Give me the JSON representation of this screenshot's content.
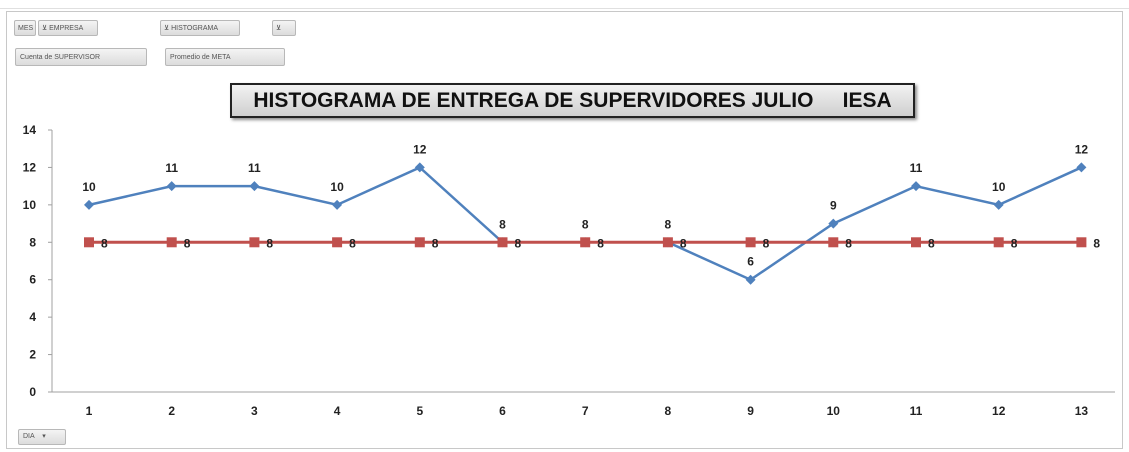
{
  "filters": {
    "mes": "MES",
    "empresa": "EMPRESA",
    "histograma": "HISTOGRAMA"
  },
  "values": {
    "field1": "Cuenta de SUPERVISOR",
    "field2": "Promedio de META"
  },
  "axis_field": "DIA",
  "chart_data": {
    "type": "line",
    "title": "HISTOGRAMA DE ENTREGA DE SUPERVIDORES JULIO     IESA",
    "categories": [
      1,
      2,
      3,
      4,
      5,
      6,
      7,
      8,
      9,
      10,
      11,
      12,
      13
    ],
    "ylim": [
      0,
      14
    ],
    "yticks": [
      0,
      2,
      4,
      6,
      8,
      10,
      12,
      14
    ],
    "grid": false,
    "legend": "none",
    "series": [
      {
        "values": [
          10,
          11,
          11,
          10,
          12,
          8,
          8,
          8,
          6,
          9,
          11,
          10,
          12
        ],
        "color": "#4f81bd",
        "marker": "diamond",
        "label_position": "above"
      },
      {
        "values": [
          8,
          8,
          8,
          8,
          8,
          8,
          8,
          8,
          8,
          8,
          8,
          8,
          8
        ],
        "color": "#c0504d",
        "marker": "square",
        "label_position": "right"
      }
    ]
  }
}
